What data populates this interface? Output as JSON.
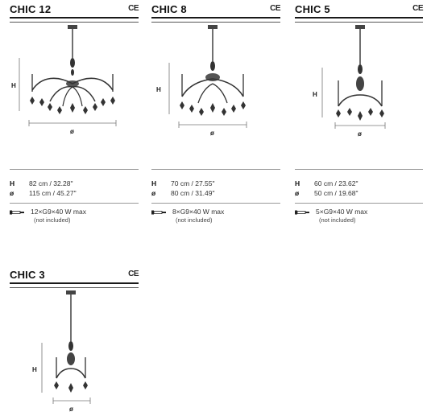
{
  "products": [
    {
      "name": "CHIC 12",
      "ce": "CE",
      "h_label": "H",
      "diam_label": "ø",
      "specs": [
        {
          "key": "H",
          "value": "82 cm / 32.28\""
        },
        {
          "key": "ø",
          "value": "115 cm / 45.27\""
        }
      ],
      "bulb": "12×G9×40 W max",
      "bulb_note": "(not included)",
      "bulb_icon": "bulb-icon"
    },
    {
      "name": "CHIC 8",
      "ce": "CE",
      "h_label": "H",
      "diam_label": "ø",
      "specs": [
        {
          "key": "H",
          "value": "70 cm / 27.55\""
        },
        {
          "key": "ø",
          "value": "80 cm / 31.49\""
        }
      ],
      "bulb": "8×G9×40 W max",
      "bulb_note": "(not included)",
      "bulb_icon": "bulb-icon"
    },
    {
      "name": "CHIC 5",
      "ce": "CE",
      "h_label": "H",
      "diam_label": "ø",
      "specs": [
        {
          "key": "H",
          "value": "60 cm / 23.62\""
        },
        {
          "key": "ø",
          "value": "50 cm / 19.68\""
        }
      ],
      "bulb": "5×G9×40 W max",
      "bulb_note": "(not included)",
      "bulb_icon": "bulb-icon"
    },
    {
      "name": "CHIC 3",
      "ce": "CE",
      "h_label": "H",
      "diam_label": "ø"
    }
  ]
}
